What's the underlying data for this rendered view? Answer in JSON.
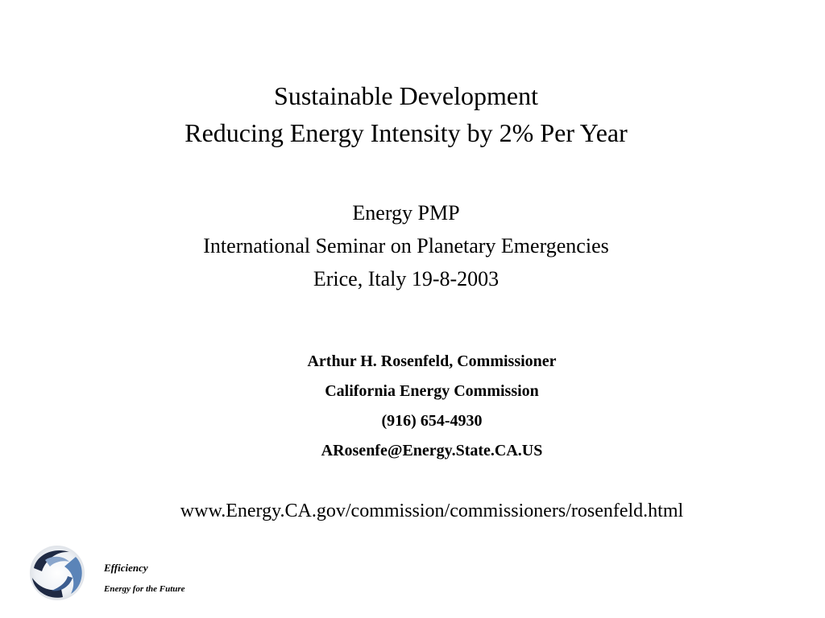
{
  "title": {
    "line1": "Sustainable Development",
    "line2": "Reducing Energy Intensity by 2% Per Year"
  },
  "event": {
    "line1": "Energy PMP",
    "line2": "International Seminar on Planetary Emergencies",
    "line3": "Erice, Italy 19-8-2003"
  },
  "author": {
    "name": "Arthur H. Rosenfeld, Commissioner",
    "organization": "California Energy Commission",
    "phone": "(916) 654-4930",
    "email": "ARosenfe@Energy.State.CA.US"
  },
  "url": "www.Energy.CA.gov/commission/commissioners/rosenfeld.html",
  "footer": {
    "logo_icon": "swirl-logo-icon",
    "brand": "Efficiency",
    "tagline": "Energy for the Future"
  }
}
